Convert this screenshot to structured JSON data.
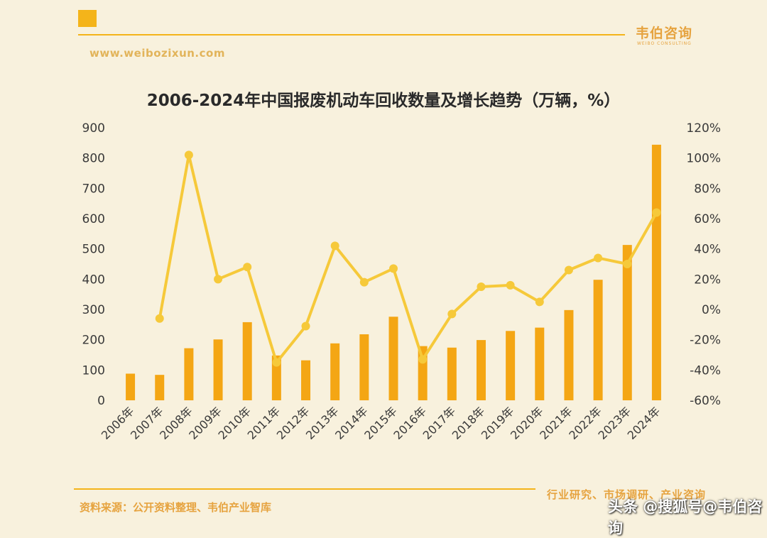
{
  "header": {
    "brand": "韦伯咨询",
    "brand_sub": "WEIBO CONSULTING",
    "website": "www.weibozixun.com"
  },
  "footer": {
    "source": "资料来源：公开资料整理、韦伯产业智库",
    "tagline": "行业研究、市场调研、产业咨询",
    "watermark": "头条 @搜狐号@韦伯咨询"
  },
  "colors": {
    "bar": "#f4a614",
    "line": "#f6c93a",
    "axis_text": "#3a3a3a"
  },
  "chart_data": {
    "type": "bar",
    "title": "2006-2024年中国报废机动车回收数量及增长趋势（万辆，%）",
    "categories": [
      "2006年",
      "2007年",
      "2008年",
      "2009年",
      "2010年",
      "2011年",
      "2012年",
      "2013年",
      "2014年",
      "2015年",
      "2016年",
      "2017年",
      "2018年",
      "2019年",
      "2020年",
      "2021年",
      "2022年",
      "2023年",
      "2024年"
    ],
    "series": [
      {
        "type": "bar",
        "axis": "left",
        "values": [
          88,
          84,
          172,
          201,
          258,
          148,
          132,
          188,
          218,
          276,
          179,
          174,
          199,
          229,
          240,
          298,
          398,
          513,
          844
        ]
      },
      {
        "type": "line",
        "axis": "right",
        "values": [
          null,
          -6,
          102,
          20,
          28,
          -35,
          -11,
          42,
          18,
          27,
          -33,
          -3,
          15,
          16,
          5,
          26,
          34,
          30,
          64
        ]
      }
    ],
    "y_left": {
      "min": 0,
      "max": 900,
      "step": 100,
      "ticks": [
        "0",
        "100",
        "200",
        "300",
        "400",
        "500",
        "600",
        "700",
        "800",
        "900"
      ]
    },
    "y_right": {
      "min": -60,
      "max": 120,
      "step": 20,
      "ticks": [
        "-60%",
        "-40%",
        "-20%",
        "0%",
        "20%",
        "40%",
        "60%",
        "80%",
        "100%",
        "120%"
      ]
    },
    "grid": false,
    "legend": "none"
  }
}
